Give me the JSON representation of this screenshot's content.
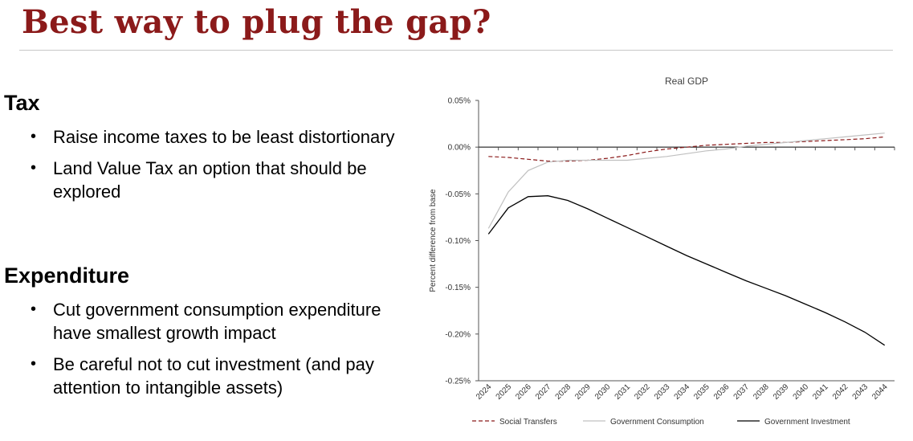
{
  "slide": {
    "title": "Best way to plug the gap?",
    "sections": [
      {
        "heading": "Tax",
        "bullets": [
          "Raise income taxes to be least distortionary",
          "Land Value Tax an option that should be explored"
        ]
      },
      {
        "heading": "Expenditure",
        "bullets": [
          "Cut government consumption expenditure have smallest growth impact",
          "Be careful not to cut investment (and pay attention to intangible assets)"
        ]
      }
    ]
  },
  "chart_data": {
    "type": "line",
    "title": "Real GDP",
    "ylabel": "Percent difference from base",
    "xlabel": "",
    "ylim": [
      -0.25,
      0.05
    ],
    "yticks": [
      0.05,
      0.0,
      -0.05,
      -0.1,
      -0.15,
      -0.2,
      -0.25
    ],
    "ytick_labels": [
      "0.05%",
      "0.00%",
      "-0.05%",
      "-0.10%",
      "-0.15%",
      "-0.20%",
      "-0.25%"
    ],
    "x": [
      "2024",
      "2025",
      "2026",
      "2027",
      "2028",
      "2029",
      "2030",
      "2031",
      "2032",
      "2033",
      "2034",
      "2035",
      "2036",
      "2037",
      "2038",
      "2039",
      "2040",
      "2041",
      "2042",
      "2043",
      "2044"
    ],
    "legend_position": "bottom",
    "grid": false,
    "series": [
      {
        "name": "Social Transfers",
        "color": "#8b1a1a",
        "style": "dashed",
        "values": [
          -0.01,
          -0.011,
          -0.013,
          -0.015,
          -0.015,
          -0.014,
          -0.012,
          -0.009,
          -0.005,
          -0.002,
          0.0,
          0.002,
          0.003,
          0.004,
          0.005,
          0.005,
          0.006,
          0.007,
          0.008,
          0.009,
          0.011
        ]
      },
      {
        "name": "Government Consumption",
        "color": "#c0c0c0",
        "style": "solid",
        "values": [
          -0.087,
          -0.048,
          -0.025,
          -0.016,
          -0.014,
          -0.014,
          -0.014,
          -0.014,
          -0.012,
          -0.01,
          -0.007,
          -0.004,
          -0.002,
          0.001,
          0.003,
          0.005,
          0.007,
          0.009,
          0.011,
          0.013,
          0.015
        ]
      },
      {
        "name": "Government Investment",
        "color": "#000000",
        "style": "solid",
        "values": [
          -0.093,
          -0.065,
          -0.053,
          -0.052,
          -0.057,
          -0.066,
          -0.076,
          -0.086,
          -0.096,
          -0.106,
          -0.116,
          -0.125,
          -0.134,
          -0.143,
          -0.151,
          -0.159,
          -0.168,
          -0.177,
          -0.187,
          -0.198,
          -0.212
        ]
      }
    ]
  }
}
